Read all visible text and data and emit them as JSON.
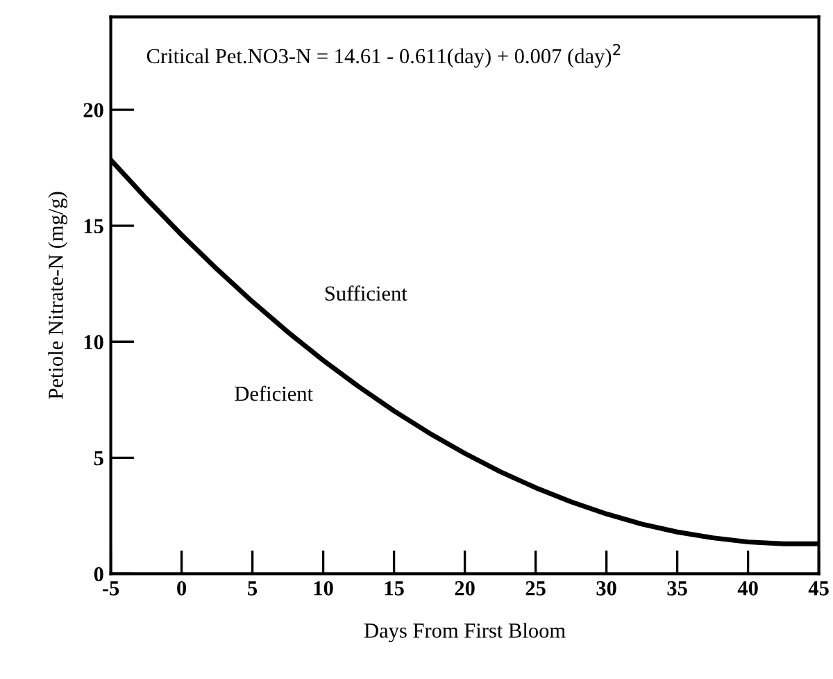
{
  "chart_data": {
    "type": "line",
    "xlabel": "Days From First Bloom",
    "ylabel": "Petiole Nitrate-N (mg/g)",
    "annotations": [
      "Critical Pet.NO3-N = 14.61 - 0.611(day) + 0.007 (day)$^{2}$",
      "Sufficient",
      "Deficient"
    ],
    "x": [
      -5,
      -2.5,
      0,
      2.5,
      5,
      7.5,
      10,
      12.5,
      15,
      17.5,
      20,
      22.5,
      25,
      27.5,
      30,
      32.5,
      35,
      37.5,
      40,
      42.5,
      45
    ],
    "series": [
      {
        "color": "#000000",
        "values": [
          17.84,
          16.18,
          14.61,
          13.13,
          11.73,
          10.42,
          9.2,
          8.07,
          7.02,
          6.06,
          5.19,
          4.4,
          3.71,
          3.1,
          2.58,
          2.14,
          1.8,
          1.55,
          1.37,
          1.29,
          1.29
        ]
      }
    ],
    "xlim": [
      -5,
      45
    ],
    "ylim": [
      0,
      24
    ],
    "xticks": [
      -5,
      0,
      5,
      10,
      15,
      20,
      25,
      30,
      35,
      40,
      45
    ],
    "yticks": [
      0,
      5,
      10,
      15,
      20
    ],
    "grid": false,
    "legend": false,
    "marker": "none",
    "line_style": "solid"
  }
}
